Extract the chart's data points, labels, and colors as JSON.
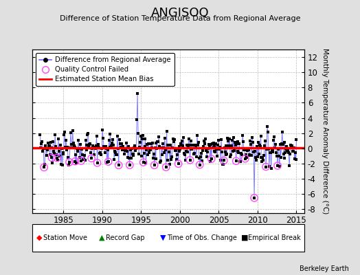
{
  "title": "ANGISOQ",
  "subtitle": "Difference of Station Temperature Data from Regional Average",
  "ylabel_right": "Monthly Temperature Anomaly Difference (°C)",
  "background_color": "#e0e0e0",
  "plot_bg_color": "#ffffff",
  "ylim": [
    -8.5,
    13
  ],
  "yticks": [
    -8,
    -6,
    -4,
    -2,
    0,
    2,
    4,
    6,
    8,
    10,
    12
  ],
  "xlim": [
    1981.0,
    2016.0
  ],
  "xticks": [
    1985,
    1990,
    1995,
    2000,
    2005,
    2010,
    2015
  ],
  "bias_value": 0.05,
  "line_color": "#6666ff",
  "bias_color": "#ff0000",
  "marker_color": "#000000",
  "qc_color": "#ff44ff",
  "watermark": "Berkeley Earth",
  "seed": 7
}
